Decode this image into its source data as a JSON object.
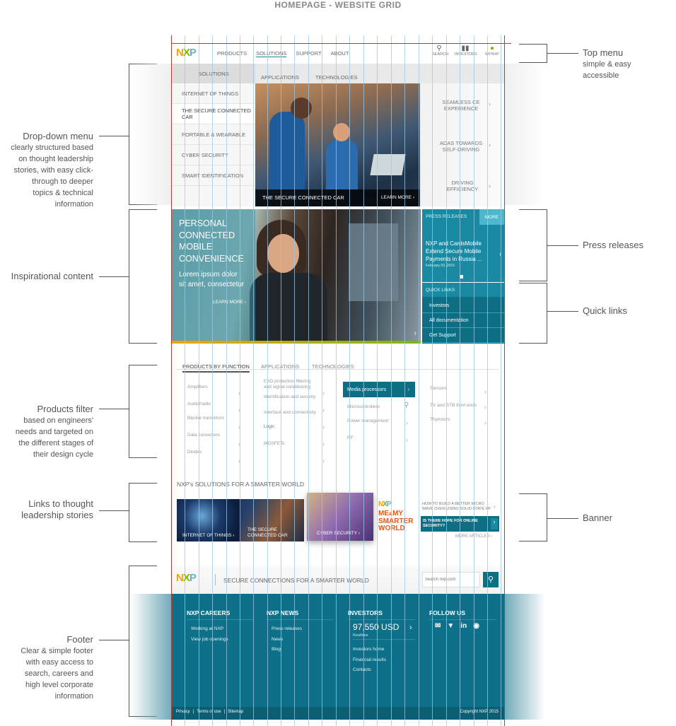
{
  "title": "HOMEPAGE - WEBSITE GRID",
  "annotations": {
    "top_menu": {
      "heading": "Top menu",
      "lines": [
        "simple & easy",
        "accessible"
      ]
    },
    "dropdown": {
      "heading": "Drop-down menu",
      "lines": [
        "clearly structured based",
        "on thought leadership",
        "stories, with easy click-",
        "through to deeper",
        "topics & technical",
        "information"
      ]
    },
    "inspirational": {
      "heading": "Inspirational content"
    },
    "press": {
      "heading": "Press releases"
    },
    "quick": {
      "heading": "Quick links"
    },
    "products_filter": {
      "heading": "Products filter",
      "lines": [
        "based on engineers'",
        "needs and targeted on",
        "the different stages of",
        "their design cycle"
      ]
    },
    "links": {
      "heading": "Links to thought",
      "heading2": "leadership stories"
    },
    "banner": {
      "heading": "Banner"
    },
    "footer": {
      "heading": "Footer",
      "lines": [
        "Clear & simple footer",
        "with easy access to",
        "search, careers and",
        "high level corporate",
        "information"
      ]
    }
  },
  "logo": {
    "n": "N",
    "x": "X",
    "p": "P"
  },
  "nav": {
    "items": [
      "PRODUCTS",
      "SOLUTIONS",
      "SUPPORT",
      "ABOUT"
    ],
    "right": [
      "SEARCH",
      "INVESTORS",
      "MYNXP"
    ]
  },
  "subnav": {
    "items": [
      "SOLUTIONS",
      "APPLICATIONS",
      "TECHNOLOGIES"
    ]
  },
  "dropdown": {
    "items": [
      "INTERNET OF THINGS",
      "THE SECURE CONNECTED CAR",
      "PORTABLE & WEARABLE",
      "CYBER SECURITY",
      "SMART IDENTIFICATION"
    ],
    "hero_caption": "THE SECURE CONNECTED CAR",
    "hero_link": "LEARN MORE",
    "side": [
      "SEAMLESS CE EXPERIENCE",
      "ADAS TOWARDS SELF-DRIVING",
      "DRIVING EFFICIENCY"
    ]
  },
  "inspiration": {
    "headline": [
      "PERSONAL",
      "CONNECTED",
      "MOBILE",
      "CONVENIENCE"
    ],
    "body": [
      "Lorem ipsum dolor",
      "sit amet, consectetur"
    ],
    "link": "LEARN MORE"
  },
  "press": {
    "label": "PRESS RELEASES",
    "more": "MORE",
    "headline": "NXP and CardsMobile Extend Secure Mobile Payments in Russia ...",
    "date": "February 03, 2015"
  },
  "quick_links": {
    "label": "QUICK LINKS",
    "items": [
      "Investors",
      "All documentation",
      "Get Support"
    ]
  },
  "products": {
    "tabs": [
      "PRODUCTS BY FUNCTION",
      "APPLICATIONS",
      "TECHNOLOGIES"
    ],
    "col1": [
      "Amplifiers",
      "Audio/radio",
      "Bipolar transistors",
      "Data converters",
      "Diodes"
    ],
    "col2": [
      "ESD protection filtering and signal conditioning",
      "Identification and security",
      "Interface and connectivity",
      "Logic",
      "MOSFETs"
    ],
    "col3": [
      "Media processors",
      "Microcontrollers",
      "Power management",
      "RF"
    ],
    "col4": [
      "Sensors",
      "TV and STB front ends",
      "Thyristors"
    ]
  },
  "stories": {
    "title": "NXP's SOLUTIONS FOR A SMARTER WORLD",
    "tiles": [
      "INTERNET OF THINGS",
      "THE SECURE CONNECTED CAR",
      "CYBER SECURITY"
    ],
    "brand_lines": [
      "ME",
      "MY",
      "SMARTER",
      "WORLD"
    ],
    "brand_amp": "&",
    "banner_q1": "HOW TO BUILD A BETTER MICRO WAVE OVEN USING SOLID-STATE RF",
    "banner_q2": "IS THERE HOPE FOR ONLINE SECURITY?",
    "more_articles": "MORE ARTICLES"
  },
  "footer": {
    "tagline": "SECURE CONNECTIONS FOR A SMARTER WORLD",
    "search_placeholder": "Search nxp.com",
    "careers": {
      "title": "NXP CAREERS",
      "links": [
        "Working at NXP",
        "View job openings"
      ]
    },
    "news": {
      "title": "NXP NEWS",
      "links": [
        "Press releases",
        "News",
        "Blog"
      ]
    },
    "investors": {
      "title": "INVESTORS",
      "price": "97,550 USD",
      "realtime": "Realtime",
      "links": [
        "Investors home",
        "Financial results",
        "Contacts"
      ]
    },
    "follow": {
      "title": "FOLLOW US"
    },
    "bottom": [
      "Privacy",
      "Terms of use",
      "Sitemap"
    ],
    "copyright": "Copyright NXP 2015"
  },
  "colors": {
    "teal": "#1a8aa3",
    "teal_dark": "#0e6f84",
    "footer": "#0f7189",
    "grid": "#9cc7e6",
    "frame": "#c0392b"
  }
}
